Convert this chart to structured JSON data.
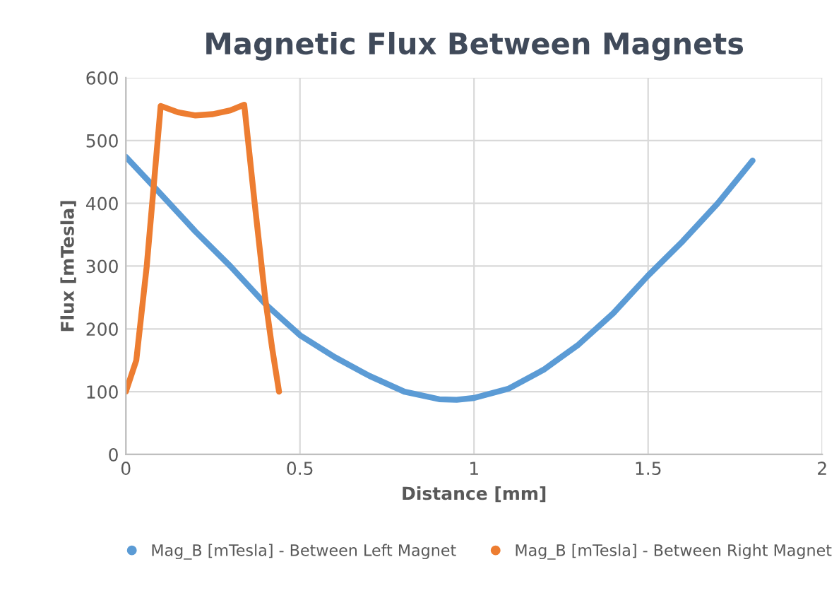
{
  "chart_data": {
    "type": "line",
    "title": "Magnetic Flux Between Magnets",
    "xlabel": "Distance [mm]",
    "ylabel": "Flux [mTesla]",
    "xlim": [
      0,
      2
    ],
    "xticks": [
      0,
      0.5,
      1,
      1.5,
      2
    ],
    "ylim": [
      0,
      600
    ],
    "yticks": [
      0,
      100,
      200,
      300,
      400,
      500,
      600
    ],
    "grid": true,
    "legend": "bottom",
    "marker": "none",
    "line_style": "solid",
    "series": [
      {
        "name": "Mag_B [mTesla] - Between Left Magnet",
        "color": "#5b9bd5",
        "x": [
          0,
          0.1,
          0.2,
          0.3,
          0.4,
          0.45,
          0.5,
          0.6,
          0.7,
          0.8,
          0.9,
          0.95,
          1.0,
          1.1,
          1.2,
          1.3,
          1.4,
          1.5,
          1.6,
          1.7,
          1.8
        ],
        "values": [
          474,
          415,
          355,
          300,
          240,
          215,
          190,
          155,
          125,
          100,
          88,
          87,
          90,
          105,
          135,
          175,
          225,
          285,
          340,
          400,
          468
        ]
      },
      {
        "name": "Mag_B [mTesla] - Between Right Magnet",
        "color": "#ed7d31",
        "x": [
          0,
          0.03,
          0.06,
          0.1,
          0.15,
          0.2,
          0.25,
          0.3,
          0.34,
          0.37,
          0.4,
          0.42,
          0.44
        ],
        "values": [
          100,
          150,
          300,
          555,
          545,
          540,
          542,
          548,
          557,
          400,
          250,
          170,
          100
        ]
      }
    ]
  }
}
